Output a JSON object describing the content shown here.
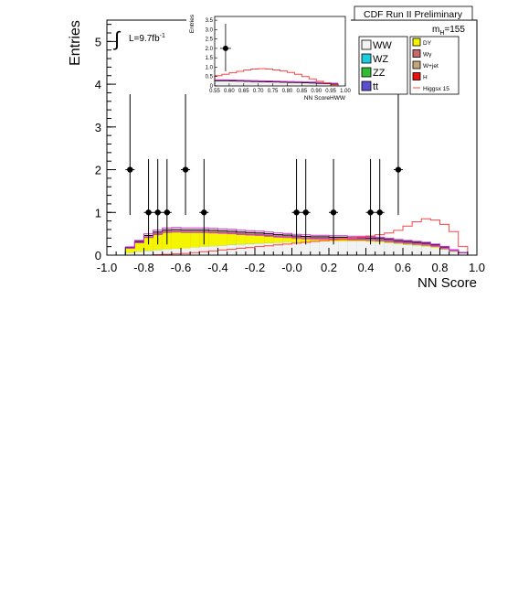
{
  "chart_data": {
    "type": "histogram",
    "ylabel": "Entries",
    "xlabel": "NN Score",
    "xlim": [
      -1.0,
      1.0
    ],
    "ylim": [
      0,
      5.5
    ],
    "x_ticks": [
      "-1.0",
      "-0.8",
      "-0.6",
      "-0.4",
      "-0.2",
      "-0.0",
      "0.2",
      "0.4",
      "0.6",
      "0.8",
      "1.0"
    ],
    "y_ticks": [
      "0",
      "1",
      "2",
      "3",
      "4",
      "5"
    ],
    "header": "CDF Run II Preliminary",
    "mass_label": "m",
    "mass_sub": "H",
    "mass_value": "=155",
    "lumi_prefix": "L=9.7fb",
    "lumi_exp": "-1",
    "integral_symbol": "∫",
    "bin_edges": [
      -0.9,
      -0.85,
      -0.8,
      -0.75,
      -0.7,
      -0.65,
      -0.6,
      -0.55,
      -0.5,
      -0.45,
      -0.4,
      -0.35,
      -0.3,
      -0.25,
      -0.2,
      -0.15,
      -0.1,
      -0.05,
      0.0,
      0.05,
      0.1,
      0.15,
      0.2,
      0.25,
      0.3,
      0.35,
      0.4,
      0.45,
      0.5,
      0.55,
      0.6,
      0.65,
      0.7,
      0.75,
      0.8,
      0.85,
      0.9,
      0.95
    ],
    "stack": [
      {
        "name": "WW",
        "color": "#f2f2f2",
        "values": [
          0.05,
          0.08,
          0.1,
          0.12,
          0.14,
          0.15,
          0.16,
          0.18,
          0.2,
          0.21,
          0.22,
          0.24,
          0.25,
          0.26,
          0.27,
          0.28,
          0.29,
          0.3,
          0.3,
          0.31,
          0.31,
          0.32,
          0.32,
          0.32,
          0.32,
          0.32,
          0.31,
          0.3,
          0.28,
          0.26,
          0.24,
          0.22,
          0.2,
          0.17,
          0.13,
          0.08,
          0.04
        ]
      },
      {
        "name": "WZ",
        "color": "#1ecce0",
        "values": [
          0.0,
          0.0,
          0.0,
          0.0,
          0.0,
          0.0,
          0.0,
          0.0,
          0.0,
          0.0,
          0.0,
          0.0,
          0.0,
          0.0,
          0.0,
          0.0,
          0.0,
          0.0,
          0.0,
          0.0,
          0.0,
          0.0,
          0.0,
          0.0,
          0.0,
          0.0,
          0.0,
          0.0,
          0.0,
          0.0,
          0.0,
          0.0,
          0.0,
          0.0,
          0.0,
          0.0,
          0.0
        ]
      },
      {
        "name": "ZZ",
        "color": "#33bb33",
        "values": [
          0.0,
          0.0,
          0.0,
          0.0,
          0.0,
          0.0,
          0.0,
          0.0,
          0.0,
          0.0,
          0.0,
          0.0,
          0.0,
          0.0,
          0.0,
          0.0,
          0.0,
          0.0,
          0.0,
          0.0,
          0.0,
          0.0,
          0.0,
          0.0,
          0.0,
          0.0,
          0.0,
          0.0,
          0.0,
          0.0,
          0.0,
          0.0,
          0.0,
          0.0,
          0.0,
          0.0,
          0.0
        ]
      },
      {
        "name": "tt",
        "color": "#5a4fcf",
        "values": [
          0.0,
          0.0,
          0.0,
          0.0,
          0.0,
          0.0,
          0.0,
          0.0,
          0.0,
          0.0,
          0.0,
          0.0,
          0.0,
          0.0,
          0.0,
          0.0,
          0.0,
          0.0,
          0.0,
          0.0,
          0.0,
          0.0,
          0.0,
          0.0,
          0.0,
          0.0,
          0.0,
          0.0,
          0.0,
          0.0,
          0.0,
          0.0,
          0.0,
          0.0,
          0.0,
          0.0,
          0.0
        ]
      },
      {
        "name": "DY",
        "color": "#f5f500",
        "values": [
          0.1,
          0.2,
          0.3,
          0.35,
          0.38,
          0.38,
          0.36,
          0.34,
          0.32,
          0.3,
          0.28,
          0.25,
          0.22,
          0.2,
          0.18,
          0.15,
          0.12,
          0.1,
          0.08,
          0.06,
          0.05,
          0.04,
          0.03,
          0.03,
          0.02,
          0.02,
          0.02,
          0.02,
          0.02,
          0.02,
          0.02,
          0.02,
          0.02,
          0.02,
          0.01,
          0.01,
          0.0
        ]
      },
      {
        "name": "Wγ",
        "color": "#c86a6a",
        "values": [
          0.01,
          0.01,
          0.02,
          0.02,
          0.02,
          0.02,
          0.02,
          0.02,
          0.02,
          0.02,
          0.02,
          0.02,
          0.02,
          0.02,
          0.02,
          0.02,
          0.02,
          0.02,
          0.02,
          0.02,
          0.02,
          0.02,
          0.02,
          0.02,
          0.02,
          0.02,
          0.02,
          0.02,
          0.02,
          0.02,
          0.02,
          0.02,
          0.02,
          0.02,
          0.02,
          0.01,
          0.01
        ]
      },
      {
        "name": "W+jet",
        "color": "#c8a47a",
        "values": [
          0.02,
          0.03,
          0.04,
          0.05,
          0.05,
          0.05,
          0.05,
          0.05,
          0.05,
          0.05,
          0.05,
          0.05,
          0.05,
          0.05,
          0.05,
          0.05,
          0.05,
          0.05,
          0.05,
          0.05,
          0.05,
          0.05,
          0.05,
          0.05,
          0.05,
          0.05,
          0.05,
          0.05,
          0.05,
          0.04,
          0.04,
          0.04,
          0.04,
          0.03,
          0.03,
          0.02,
          0.01
        ]
      },
      {
        "name": "H",
        "color": "#ee1111",
        "values": [
          0.0,
          0.0,
          0.0,
          0.0,
          0.0,
          0.0,
          0.0,
          0.0,
          0.0,
          0.0,
          0.0,
          0.0,
          0.0,
          0.0,
          0.0,
          0.0,
          0.0,
          0.0,
          0.0,
          0.0,
          0.0,
          0.0,
          0.0,
          0.0,
          0.0,
          0.0,
          0.0,
          0.0,
          0.0,
          0.0,
          0.0,
          0.0,
          0.0,
          0.0,
          0.0,
          0.0,
          0.0
        ]
      }
    ],
    "signal": {
      "name": "Higgsx 15",
      "color": "#ff4444",
      "values": [
        0.0,
        0.0,
        0.0,
        0.01,
        0.02,
        0.03,
        0.04,
        0.06,
        0.08,
        0.1,
        0.12,
        0.14,
        0.16,
        0.18,
        0.2,
        0.22,
        0.24,
        0.26,
        0.28,
        0.3,
        0.32,
        0.34,
        0.36,
        0.38,
        0.4,
        0.42,
        0.45,
        0.48,
        0.52,
        0.58,
        0.68,
        0.78,
        0.85,
        0.82,
        0.72,
        0.55,
        0.2
      ]
    },
    "data_points": [
      {
        "x": -0.875,
        "y": 2
      },
      {
        "x": -0.775,
        "y": 1
      },
      {
        "x": -0.725,
        "y": 1
      },
      {
        "x": -0.675,
        "y": 1
      },
      {
        "x": -0.575,
        "y": 2
      },
      {
        "x": -0.475,
        "y": 1
      },
      {
        "x": 0.025,
        "y": 1
      },
      {
        "x": 0.075,
        "y": 1
      },
      {
        "x": 0.225,
        "y": 1
      },
      {
        "x": 0.425,
        "y": 1
      },
      {
        "x": 0.475,
        "y": 1
      },
      {
        "x": 0.575,
        "y": 2
      }
    ],
    "legend": [
      {
        "label": "WW",
        "color": "#f2f2f2",
        "column": "left"
      },
      {
        "label": "WZ",
        "color": "#1ecce0",
        "column": "left"
      },
      {
        "label": "ZZ",
        "color": "#33bb33",
        "column": "left"
      },
      {
        "label": "tt",
        "color": "#5a4fcf",
        "column": "left"
      },
      {
        "label": "DY",
        "color": "#f5f500",
        "column": "right"
      },
      {
        "label": "Wγ",
        "color": "#c86a6a",
        "column": "right"
      },
      {
        "label": "W+jet",
        "color": "#c8a47a",
        "column": "right"
      },
      {
        "label": "H",
        "color": "#ee1111",
        "column": "right"
      },
      {
        "label": "Higgsx 15",
        "color": "#ff4444",
        "column": "right",
        "line": true
      }
    ],
    "inset": {
      "xlabel": "NN ScoreHWW",
      "ylabel": "Entries",
      "xlim": [
        0.55,
        1.0
      ],
      "ylim": [
        0,
        3.7
      ],
      "x_ticks": [
        "0.55",
        "0.60",
        "0.65",
        "0.70",
        "0.75",
        "0.80",
        "0.85",
        "0.90",
        "0.95",
        "1.00"
      ],
      "y_ticks": [
        "0",
        "0.5",
        "1.0",
        "1.5",
        "2.0",
        "2.5",
        "3.0",
        "3.5"
      ],
      "bin_edges": [
        0.55,
        0.575,
        0.6,
        0.625,
        0.65,
        0.675,
        0.7,
        0.725,
        0.75,
        0.775,
        0.8,
        0.825,
        0.85,
        0.875,
        0.9,
        0.925,
        0.95,
        0.975
      ],
      "background": [
        0.28,
        0.28,
        0.27,
        0.26,
        0.25,
        0.24,
        0.23,
        0.22,
        0.21,
        0.2,
        0.19,
        0.18,
        0.17,
        0.16,
        0.14,
        0.12,
        0.1
      ],
      "signal": [
        0.55,
        0.62,
        0.7,
        0.78,
        0.85,
        0.9,
        0.92,
        0.9,
        0.85,
        0.8,
        0.72,
        0.62,
        0.5,
        0.38,
        0.25,
        0.15,
        0.06
      ],
      "data_points": [
        {
          "x": 0.5875,
          "y": 2
        }
      ]
    }
  }
}
